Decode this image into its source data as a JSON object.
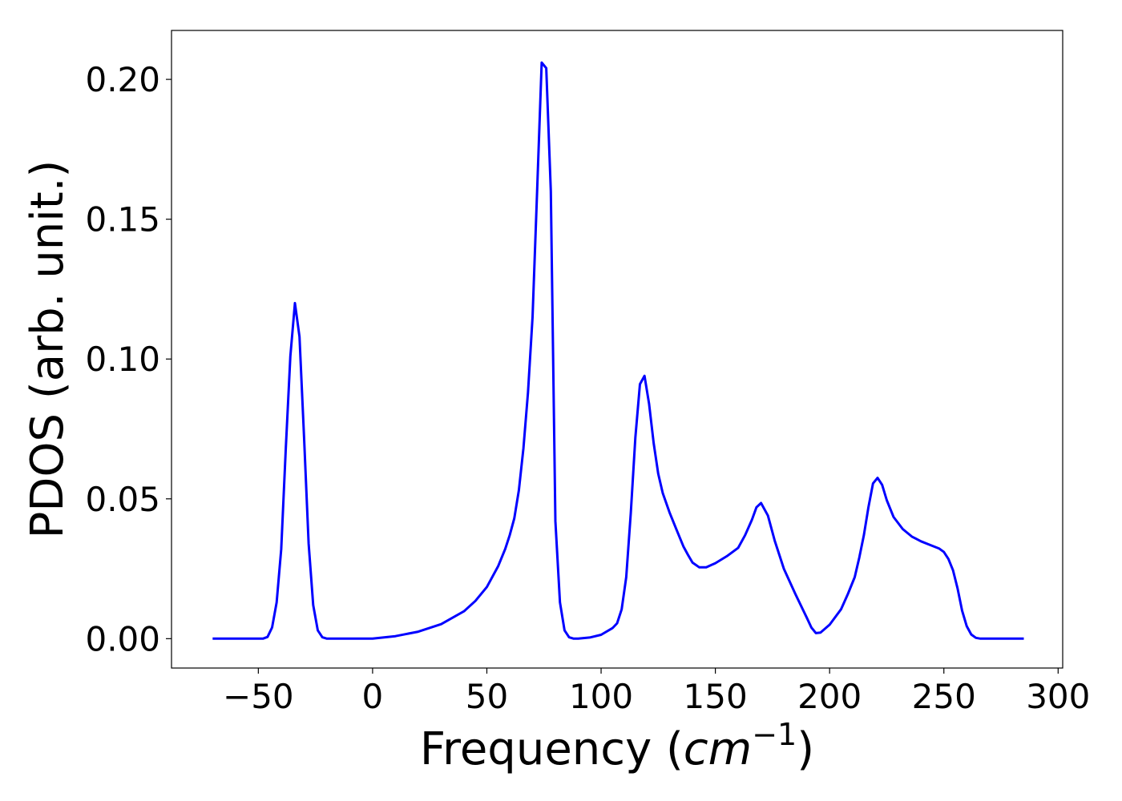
{
  "chart_data": {
    "type": "line",
    "title": "",
    "xlabel_main": "Frequency (",
    "xlabel_var": "cm",
    "xlabel_sup": "−1",
    "xlabel_close": ")",
    "ylabel": "PDOS (arb. unit.)",
    "xlim": [
      -88,
      302
    ],
    "ylim": [
      -0.0105,
      0.2175
    ],
    "grid": false,
    "legend": "none",
    "line_color": "#0000ff",
    "x_ticks": [
      -50,
      0,
      50,
      100,
      150,
      200,
      250,
      300
    ],
    "x_tick_labels": [
      "−50",
      "0",
      "50",
      "100",
      "150",
      "200",
      "250",
      "300"
    ],
    "y_ticks": [
      0.0,
      0.05,
      0.1,
      0.15,
      0.2
    ],
    "y_tick_labels": [
      "0.00",
      "0.05",
      "0.10",
      "0.15",
      "0.20"
    ],
    "series": [
      {
        "x": [
          -70,
          -48,
          -46,
          -44,
          -42,
          -40,
          -38,
          -36,
          -34,
          -32,
          -30,
          -28,
          -26,
          -24,
          -22,
          -20,
          -10,
          0,
          10,
          20,
          30,
          40,
          45,
          50,
          55,
          58,
          60,
          62,
          64,
          66,
          68,
          70,
          72,
          74,
          76,
          78,
          80,
          82,
          84,
          86,
          88,
          90,
          95,
          100,
          105,
          107,
          109,
          111,
          113,
          115,
          117,
          119,
          121,
          123,
          125,
          127,
          130,
          133,
          136,
          138,
          140,
          143,
          146,
          150,
          155,
          160,
          163,
          166,
          168,
          170,
          173,
          176,
          180,
          185,
          190,
          192,
          194,
          196,
          200,
          205,
          208,
          211,
          213,
          215,
          217,
          219,
          221,
          223,
          225,
          228,
          232,
          236,
          240,
          244,
          248,
          250,
          252,
          254,
          256,
          258,
          260,
          262,
          264,
          266,
          285
        ],
        "y": [
          0.0,
          0.0,
          0.0006,
          0.004,
          0.013,
          0.032,
          0.068,
          0.101,
          0.12,
          0.108,
          0.072,
          0.034,
          0.012,
          0.003,
          0.0005,
          0.0,
          0.0,
          0.0,
          0.0009,
          0.0025,
          0.0052,
          0.0098,
          0.0135,
          0.0185,
          0.026,
          0.032,
          0.037,
          0.043,
          0.053,
          0.068,
          0.088,
          0.115,
          0.16,
          0.206,
          0.204,
          0.16,
          0.042,
          0.013,
          0.003,
          0.0005,
          0.0,
          0.0,
          0.0004,
          0.0014,
          0.0038,
          0.0055,
          0.0105,
          0.022,
          0.045,
          0.072,
          0.091,
          0.094,
          0.084,
          0.07,
          0.059,
          0.052,
          0.045,
          0.039,
          0.033,
          0.03,
          0.0272,
          0.0255,
          0.0255,
          0.027,
          0.0295,
          0.0325,
          0.037,
          0.0425,
          0.047,
          0.0485,
          0.044,
          0.035,
          0.025,
          0.016,
          0.0075,
          0.004,
          0.002,
          0.0022,
          0.005,
          0.0105,
          0.016,
          0.022,
          0.029,
          0.037,
          0.047,
          0.0555,
          0.0575,
          0.055,
          0.0495,
          0.0435,
          0.0392,
          0.0365,
          0.0348,
          0.0335,
          0.0322,
          0.031,
          0.0285,
          0.0245,
          0.018,
          0.01,
          0.0045,
          0.0015,
          0.0003,
          0.0,
          0.0
        ]
      }
    ]
  }
}
